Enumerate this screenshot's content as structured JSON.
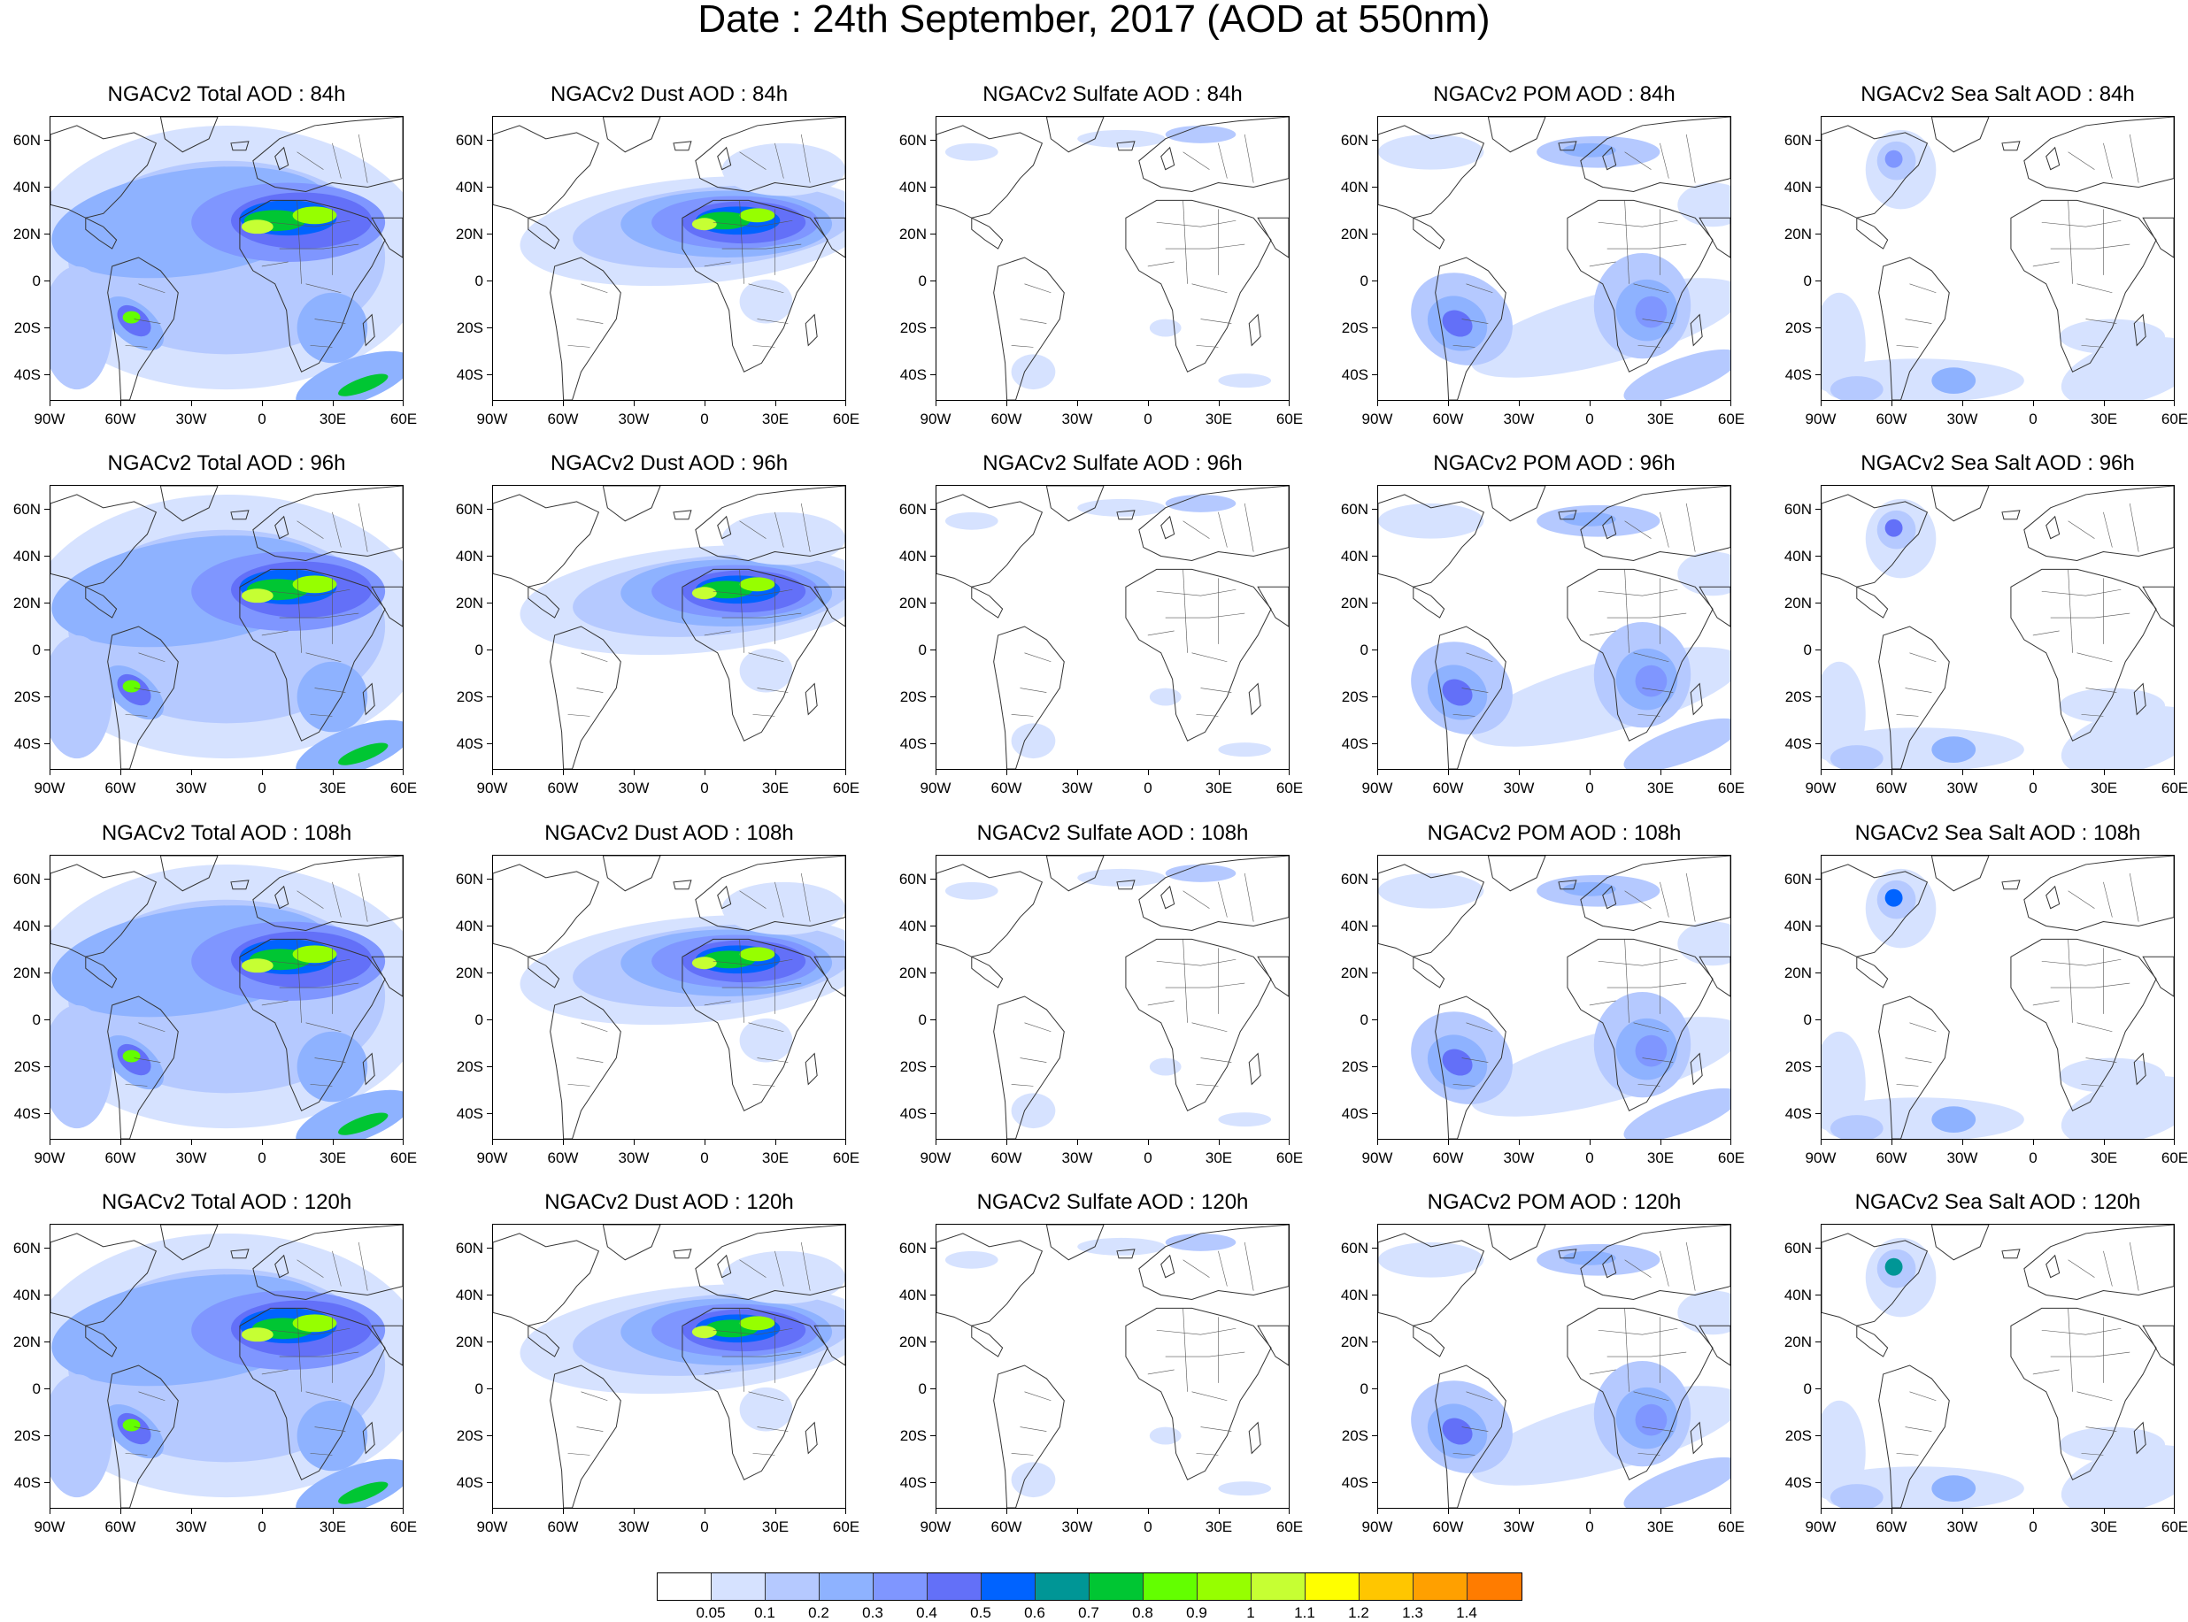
{
  "title": "Date : 24th September, 2017 (AOD at 550nm)",
  "axes": {
    "y_labels": [
      "60N",
      "40N",
      "20N",
      "0",
      "20S",
      "40S"
    ],
    "x_labels": [
      "90W",
      "60W",
      "30W",
      "0",
      "30E",
      "60E"
    ]
  },
  "rows": [
    {
      "hour": "84h",
      "panels": [
        "NGACv2 Total AOD : 84h",
        "NGACv2 Dust AOD : 84h",
        "NGACv2 Sulfate AOD : 84h",
        "NGACv2 POM AOD : 84h",
        "NGACv2 Sea Salt AOD : 84h"
      ]
    },
    {
      "hour": "96h",
      "panels": [
        "NGACv2 Total AOD : 96h",
        "NGACv2 Dust AOD : 96h",
        "NGACv2 Sulfate AOD : 96h",
        "NGACv2 POM AOD : 96h",
        "NGACv2 Sea Salt AOD : 96h"
      ]
    },
    {
      "hour": "108h",
      "panels": [
        "NGACv2 Total AOD : 108h",
        "NGACv2 Dust AOD : 108h",
        "NGACv2 Sulfate AOD : 108h",
        "NGACv2 POM AOD : 108h",
        "NGACv2 Sea Salt AOD : 108h"
      ]
    },
    {
      "hour": "120h",
      "panels": [
        "NGACv2 Total AOD : 120h",
        "NGACv2 Dust AOD : 120h",
        "NGACv2 Sulfate AOD : 120h",
        "NGACv2 POM AOD : 120h",
        "NGACv2 Sea Salt  AOD : 120h"
      ]
    }
  ],
  "colorbar": {
    "labels": [
      "0.05",
      "0.1",
      "0.2",
      "0.3",
      "0.4",
      "0.5",
      "0.6",
      "0.7",
      "0.8",
      "0.9",
      "1",
      "1.1",
      "1.2",
      "1.3",
      "1.4"
    ],
    "colors": [
      "#ffffff",
      "#d6e2ff",
      "#b5c9ff",
      "#8eb2ff",
      "#7f96ff",
      "#6370f8",
      "#0063ff",
      "#009696",
      "#00c633",
      "#63ff00",
      "#96ff00",
      "#c6ff33",
      "#ffff00",
      "#ffc600",
      "#ffa000",
      "#ff7c00",
      "#ff1900"
    ]
  }
}
